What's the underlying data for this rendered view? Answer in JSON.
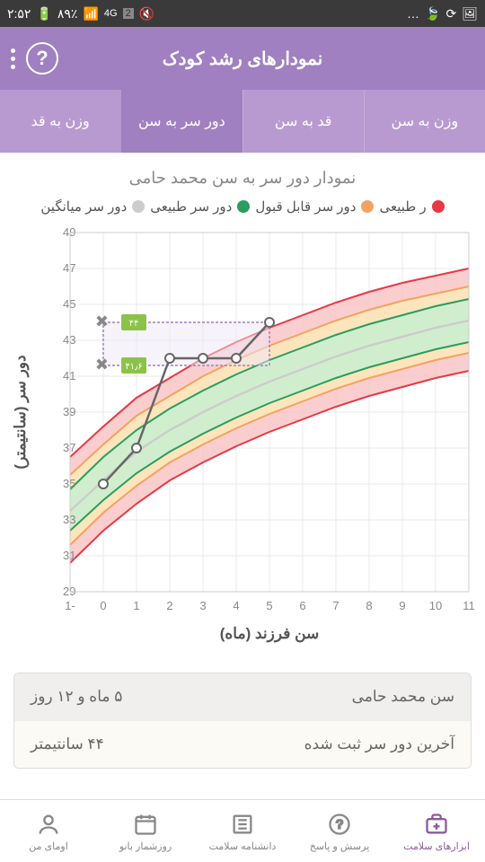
{
  "status": {
    "time": "۲:۵۲",
    "battery": "۸۹٪",
    "network": "4G",
    "sim": "2"
  },
  "header": {
    "title": "نمودارهای رشد کودک"
  },
  "tabs": [
    {
      "label": "وزن به سن",
      "active": false
    },
    {
      "label": "قد به سن",
      "active": false
    },
    {
      "label": "دور سر به سن",
      "active": true
    },
    {
      "label": "وزن به قد",
      "active": false
    }
  ],
  "chart": {
    "title": "نمودار دور سر به سن محمد حامی",
    "legend": [
      {
        "label": "ر طبیعی",
        "color": "#e63946"
      },
      {
        "label": "دور سر قابل قبول",
        "color": "#f4a261"
      },
      {
        "label": "دور سر طبیعی",
        "color": "#2a9d5f"
      },
      {
        "label": "دور سر میانگین",
        "color": "#cccccc"
      }
    ],
    "type": "line",
    "xlabel": "سن فرزند (ماه)",
    "ylabel": "دور سر (سانتیمتر)",
    "xlim": [
      -1,
      11
    ],
    "ylim": [
      29,
      49
    ],
    "yticks": [
      29,
      31,
      33,
      35,
      37,
      39,
      41,
      43,
      45,
      47,
      49
    ],
    "xticks": [
      -1,
      0,
      1,
      2,
      3,
      4,
      5,
      6,
      7,
      8,
      9,
      10,
      11
    ],
    "background_color": "#ffffff",
    "grid_color": "#e8e8e8",
    "bands": [
      {
        "name": "outer",
        "color": "#f9c5c5",
        "upper": [
          36.5,
          38.2,
          39.8,
          40.9,
          42.0,
          42.9,
          43.7,
          44.4,
          45.1,
          45.7,
          46.2,
          46.6,
          47.0
        ],
        "lower": [
          30.6,
          32.4,
          33.9,
          35.2,
          36.2,
          37.1,
          37.9,
          38.6,
          39.3,
          39.9,
          40.4,
          40.9,
          41.3
        ]
      },
      {
        "name": "middle",
        "color": "#fce9b8",
        "upper": [
          35.5,
          37.2,
          38.8,
          39.9,
          41.0,
          41.9,
          42.7,
          43.4,
          44.1,
          44.7,
          45.2,
          45.6,
          46.0
        ],
        "lower": [
          31.6,
          33.4,
          34.9,
          36.2,
          37.2,
          38.1,
          38.9,
          39.6,
          40.3,
          40.9,
          41.4,
          41.9,
          42.3
        ]
      },
      {
        "name": "inner",
        "color": "#c8f0d0",
        "upper": [
          34.7,
          36.5,
          38.0,
          39.2,
          40.2,
          41.1,
          41.9,
          42.6,
          43.3,
          43.9,
          44.4,
          44.9,
          45.3
        ],
        "lower": [
          32.4,
          34.1,
          35.6,
          36.8,
          37.8,
          38.7,
          39.5,
          40.2,
          40.9,
          41.5,
          42.0,
          42.5,
          42.9
        ]
      }
    ],
    "mean_line": {
      "color": "#cccccc",
      "values": [
        33.5,
        35.2,
        36.8,
        38.0,
        39.0,
        39.9,
        40.7,
        41.4,
        42.1,
        42.7,
        43.2,
        43.7,
        44.1
      ]
    },
    "data_line": {
      "color": "#666666",
      "points": [
        {
          "x": 0,
          "y": 35
        },
        {
          "x": 1,
          "y": 37
        },
        {
          "x": 2,
          "y": 42
        },
        {
          "x": 3,
          "y": 42
        },
        {
          "x": 4,
          "y": 42
        },
        {
          "x": 5,
          "y": 44
        }
      ]
    },
    "markers": [
      {
        "x": 0,
        "y": 44,
        "label": "۴۴",
        "color": "#8bc34a"
      },
      {
        "x": 0,
        "y": 41.6,
        "label": "۴۱٫۶",
        "color": "#8bc34a"
      }
    ],
    "guide_box": {
      "color": "#a080c0",
      "x": [
        0,
        5
      ],
      "y": [
        41.6,
        44
      ]
    }
  },
  "info": {
    "name_label": "سن محمد حامی",
    "age_value": "۵ ماه و ۱۲ روز",
    "last_label": "آخرین دور سر ثبت شده",
    "last_value": "۴۴ سانتیمتر"
  },
  "nav": [
    {
      "label": "ابزارهای سلامت",
      "active": true
    },
    {
      "label": "پرسش و پاسخ",
      "active": false
    },
    {
      "label": "دانشنامه سلامت",
      "active": false
    },
    {
      "label": "روزشمار بانو",
      "active": false
    },
    {
      "label": "اومای من",
      "active": false
    }
  ]
}
